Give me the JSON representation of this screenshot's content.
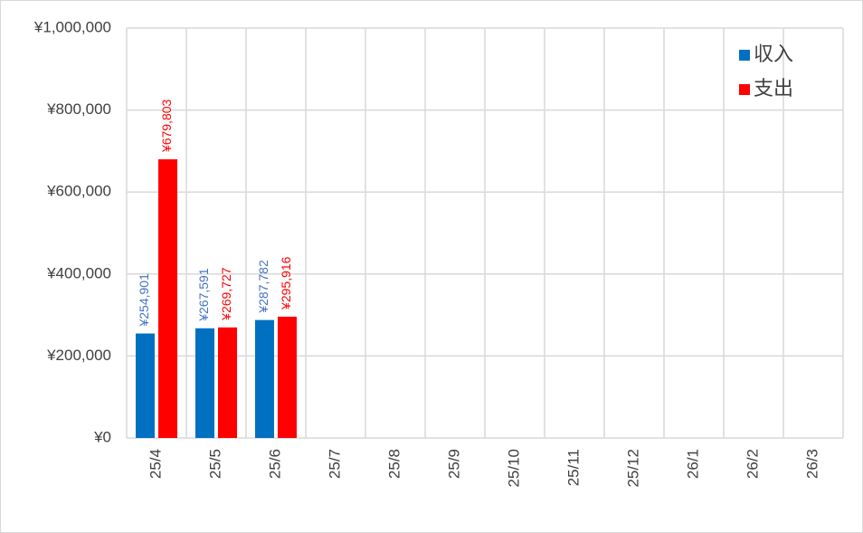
{
  "chart_data": {
    "type": "bar",
    "categories": [
      "25/4",
      "25/5",
      "25/6",
      "25/7",
      "25/8",
      "25/9",
      "25/10",
      "25/11",
      "25/12",
      "26/1",
      "26/2",
      "26/3"
    ],
    "series": [
      {
        "name": "収入",
        "color": "#0070c0",
        "label_color": "#4472c4",
        "values": [
          254901,
          267591,
          287782,
          null,
          null,
          null,
          null,
          null,
          null,
          null,
          null,
          null
        ],
        "value_labels": [
          "¥254,901",
          "¥267,591",
          "¥287,782",
          null,
          null,
          null,
          null,
          null,
          null,
          null,
          null,
          null
        ]
      },
      {
        "name": "支出",
        "color": "#ff0000",
        "label_color": "#ff0000",
        "values": [
          679803,
          269727,
          295916,
          null,
          null,
          null,
          null,
          null,
          null,
          null,
          null,
          null
        ],
        "value_labels": [
          "¥679,803",
          "¥269,727",
          "¥295,916",
          null,
          null,
          null,
          null,
          null,
          null,
          null,
          null,
          null
        ]
      }
    ],
    "ylim": [
      0,
      1000000
    ],
    "yticks": [
      {
        "value": 0,
        "label": "¥0"
      },
      {
        "value": 200000,
        "label": "¥200,000"
      },
      {
        "value": 400000,
        "label": "¥400,000"
      },
      {
        "value": 600000,
        "label": "¥600,000"
      },
      {
        "value": 800000,
        "label": "¥800,000"
      },
      {
        "value": 1000000,
        "label": "¥1,000,000"
      }
    ],
    "grid": true,
    "legend": "top-right"
  }
}
